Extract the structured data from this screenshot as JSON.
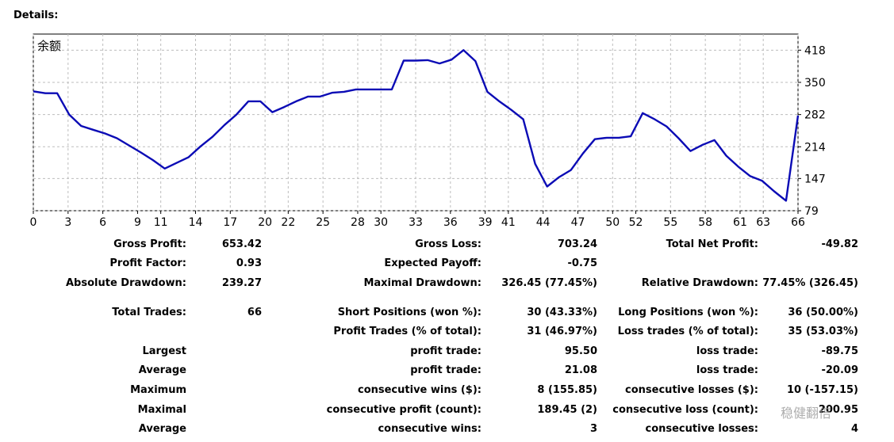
{
  "details_label": "Details:",
  "chart_data": {
    "type": "line",
    "series": [
      {
        "name": "余额",
        "color": "#0b0bb5",
        "values": [
          331,
          327,
          327,
          282,
          258,
          250,
          242,
          232,
          217,
          202,
          186,
          168,
          180,
          192,
          215,
          235,
          260,
          282,
          310,
          310,
          287,
          298,
          310,
          320,
          320,
          328,
          330,
          335,
          335,
          335,
          335,
          396,
          396,
          397,
          390,
          398,
          418,
          395,
          330,
          310,
          292,
          272,
          178,
          130,
          150,
          165,
          200,
          230,
          233,
          233,
          236,
          285,
          272,
          257,
          232,
          205,
          218,
          228,
          195,
          172,
          152,
          142,
          120,
          100,
          280
        ]
      }
    ],
    "x_ticks": [
      0,
      3,
      6,
      9,
      11,
      14,
      17,
      20,
      22,
      25,
      28,
      30,
      33,
      36,
      39,
      41,
      44,
      47,
      50,
      52,
      55,
      58,
      61,
      63,
      66
    ],
    "y_ticks": [
      79,
      147,
      214,
      282,
      350,
      418
    ],
    "ylim": [
      79,
      452
    ],
    "xlim": [
      0,
      66
    ],
    "grid": true,
    "line_color": "#0b0bb5",
    "grid_color": "#bdbdbd"
  },
  "stats": {
    "gross_profit": {
      "label": "Gross Profit:",
      "value": "653.42"
    },
    "gross_loss": {
      "label": "Gross Loss:",
      "value": "703.24"
    },
    "total_net_profit": {
      "label": "Total Net Profit:",
      "value": "-49.82"
    },
    "profit_factor": {
      "label": "Profit Factor:",
      "value": "0.93"
    },
    "expected_payoff": {
      "label": "Expected Payoff:",
      "value": "-0.75"
    },
    "absolute_drawdown": {
      "label": "Absolute Drawdown:",
      "value": "239.27"
    },
    "maximal_drawdown": {
      "label": "Maximal Drawdown:",
      "value": "326.45 (77.45%)"
    },
    "relative_drawdown": {
      "label": "Relative Drawdown:",
      "value": "77.45% (326.45)"
    },
    "total_trades": {
      "label": "Total Trades:",
      "value": "66"
    },
    "short_positions": {
      "label": "Short Positions (won %):",
      "value": "30 (43.33%)"
    },
    "long_positions": {
      "label": "Long Positions (won %):",
      "value": "36 (50.00%)"
    },
    "profit_trades": {
      "label": "Profit Trades (% of total):",
      "value": "31 (46.97%)"
    },
    "loss_trades": {
      "label": "Loss trades (% of total):",
      "value": "35 (53.03%)"
    },
    "largest": {
      "label": "Largest",
      "profit_label": "profit trade:",
      "profit_value": "95.50",
      "loss_label": "loss trade:",
      "loss_value": "-89.75"
    },
    "average": {
      "label": "Average",
      "profit_label": "profit trade:",
      "profit_value": "21.08",
      "loss_label": "loss trade:",
      "loss_value": "-20.09"
    },
    "maximum": {
      "label": "Maximum",
      "wins_label": "consecutive wins ($):",
      "wins_value": "8 (155.85)",
      "losses_label": "consecutive losses ($):",
      "losses_value": "10 (-157.15)"
    },
    "maximal": {
      "label": "Maximal",
      "profit_label": "consecutive profit (count):",
      "profit_value": "189.45 (2)",
      "loss_label": "consecutive loss (count):",
      "loss_value": "200.95"
    },
    "average_consec": {
      "label": "Average",
      "wins_label": "consecutive wins:",
      "wins_value": "3",
      "losses_label": "consecutive losses:",
      "losses_value": "4"
    }
  },
  "watermark": "稳健翻倍"
}
